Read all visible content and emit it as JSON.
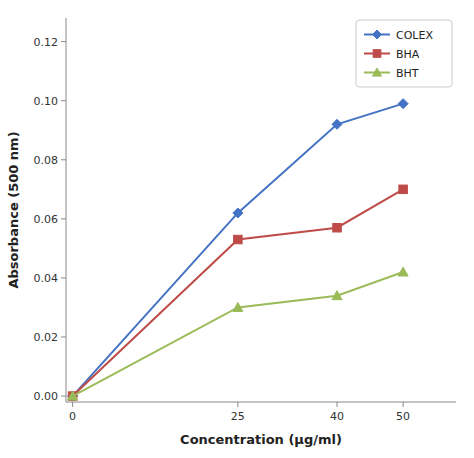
{
  "chart_data": {
    "type": "line",
    "x_label": "Concentration (μg/ml)",
    "y_label": "Absorbance (500 nm)",
    "x": [
      0,
      25,
      40,
      50
    ],
    "series": [
      {
        "name": "COLEX",
        "color": "#4472C4",
        "marker": "diamond",
        "values": [
          0.0,
          0.062,
          0.092,
          0.099
        ]
      },
      {
        "name": "BHA",
        "color": "#BE4B48",
        "marker": "square",
        "values": [
          0.0,
          0.053,
          0.057,
          0.07
        ]
      },
      {
        "name": "BHT",
        "color": "#9BBB59",
        "marker": "triangle",
        "values": [
          0.0,
          0.03,
          0.034,
          0.042
        ]
      }
    ],
    "xlim": [
      -1,
      58
    ],
    "ylim": [
      -0.002,
      0.128
    ],
    "xticks": [
      0,
      25,
      40,
      50
    ],
    "yticks": [
      {
        "value": 0.0,
        "label": "0.00"
      },
      0.02,
      0.04,
      0.06,
      0.08,
      {
        "value": 0.1,
        "label": "0.10"
      },
      0.12
    ],
    "grid": false,
    "legend": "upper right"
  }
}
